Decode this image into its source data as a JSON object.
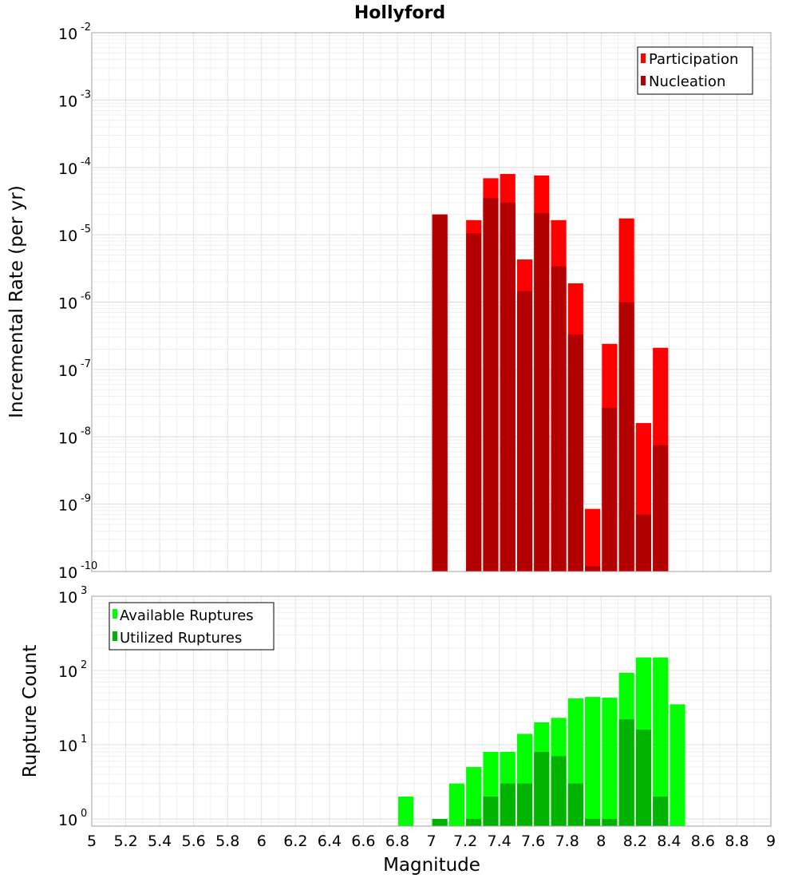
{
  "chart_data": [
    {
      "type": "bar",
      "title": "Hollyford",
      "ylabel": "Incremental Rate (per yr)",
      "xlabel": "",
      "yscale": "log",
      "ylim": [
        1e-10,
        0.01
      ],
      "xlim": [
        5,
        9
      ],
      "grid": true,
      "legend_position": "top-right",
      "y_tick_labels": [
        {
          "base": "10",
          "exp": "-2"
        },
        {
          "base": "10",
          "exp": "-3"
        },
        {
          "base": "10",
          "exp": "-4"
        },
        {
          "base": "10",
          "exp": "-5"
        },
        {
          "base": "10",
          "exp": "-6"
        },
        {
          "base": "10",
          "exp": "-7"
        },
        {
          "base": "10",
          "exp": "-8"
        },
        {
          "base": "10",
          "exp": "-9"
        },
        {
          "base": "10",
          "exp": "-10"
        }
      ],
      "series": [
        {
          "name": "Participation",
          "color": "#ff0000",
          "points": [
            {
              "x": 7.05,
              "y": 2e-05
            },
            {
              "x": 7.25,
              "y": 1.65e-05
            },
            {
              "x": 7.35,
              "y": 6.9e-05
            },
            {
              "x": 7.45,
              "y": 8e-05
            },
            {
              "x": 7.55,
              "y": 4.3e-06
            },
            {
              "x": 7.65,
              "y": 7.6e-05
            },
            {
              "x": 7.75,
              "y": 1.65e-05
            },
            {
              "x": 7.85,
              "y": 1.9e-06
            },
            {
              "x": 7.95,
              "y": 8.5e-10
            },
            {
              "x": 8.05,
              "y": 2.4e-07
            },
            {
              "x": 8.15,
              "y": 1.75e-05
            },
            {
              "x": 8.25,
              "y": 1.6e-08
            },
            {
              "x": 8.35,
              "y": 2.1e-07
            }
          ]
        },
        {
          "name": "Nucleation",
          "color": "#b30000",
          "points": [
            {
              "x": 7.05,
              "y": 2e-05
            },
            {
              "x": 7.25,
              "y": 1.05e-05
            },
            {
              "x": 7.35,
              "y": 3.5e-05
            },
            {
              "x": 7.45,
              "y": 3e-05
            },
            {
              "x": 7.55,
              "y": 1.45e-06
            },
            {
              "x": 7.65,
              "y": 2.1e-05
            },
            {
              "x": 7.75,
              "y": 3.4e-06
            },
            {
              "x": 7.85,
              "y": 3.3e-07
            },
            {
              "x": 7.95,
              "y": 1.2e-10
            },
            {
              "x": 8.05,
              "y": 2.7e-08
            },
            {
              "x": 8.15,
              "y": 1e-06
            },
            {
              "x": 8.25,
              "y": 7e-10
            },
            {
              "x": 8.35,
              "y": 7.5e-09
            }
          ]
        }
      ]
    },
    {
      "type": "bar",
      "title": "",
      "ylabel": "Rupture Count",
      "xlabel": "Magnitude",
      "yscale": "log",
      "ylim": [
        0.8,
        1000
      ],
      "xlim": [
        5,
        9
      ],
      "grid": true,
      "legend_position": "top-left",
      "y_tick_labels": [
        {
          "base": "10",
          "exp": "3"
        },
        {
          "base": "10",
          "exp": "2"
        },
        {
          "base": "10",
          "exp": "1"
        },
        {
          "base": "10",
          "exp": "0"
        }
      ],
      "x_tick_labels": [
        "5",
        "5.2",
        "5.4",
        "5.6",
        "5.8",
        "6",
        "6.2",
        "6.4",
        "6.6",
        "6.8",
        "7",
        "7.2",
        "7.4",
        "7.6",
        "7.8",
        "8",
        "8.2",
        "8.4",
        "8.6",
        "8.8",
        "9"
      ],
      "series": [
        {
          "name": "Available Ruptures",
          "color": "#00ff00",
          "points": [
            {
              "x": 6.85,
              "y": 2
            },
            {
              "x": 7.15,
              "y": 3
            },
            {
              "x": 7.25,
              "y": 5
            },
            {
              "x": 7.35,
              "y": 8
            },
            {
              "x": 7.45,
              "y": 8
            },
            {
              "x": 7.55,
              "y": 14
            },
            {
              "x": 7.65,
              "y": 20
            },
            {
              "x": 7.75,
              "y": 23
            },
            {
              "x": 7.85,
              "y": 42
            },
            {
              "x": 7.95,
              "y": 44
            },
            {
              "x": 8.05,
              "y": 43
            },
            {
              "x": 8.15,
              "y": 93
            },
            {
              "x": 8.25,
              "y": 150
            },
            {
              "x": 8.35,
              "y": 150
            },
            {
              "x": 8.45,
              "y": 35
            }
          ]
        },
        {
          "name": "Utilized Ruptures",
          "color": "#00b300",
          "points": [
            {
              "x": 7.05,
              "y": 1
            },
            {
              "x": 7.25,
              "y": 1
            },
            {
              "x": 7.35,
              "y": 2
            },
            {
              "x": 7.45,
              "y": 3
            },
            {
              "x": 7.55,
              "y": 3
            },
            {
              "x": 7.65,
              "y": 8
            },
            {
              "x": 7.75,
              "y": 7
            },
            {
              "x": 7.85,
              "y": 3
            },
            {
              "x": 7.95,
              "y": 1
            },
            {
              "x": 8.05,
              "y": 1
            },
            {
              "x": 8.15,
              "y": 22
            },
            {
              "x": 8.25,
              "y": 16
            },
            {
              "x": 8.35,
              "y": 2
            }
          ]
        }
      ]
    }
  ]
}
